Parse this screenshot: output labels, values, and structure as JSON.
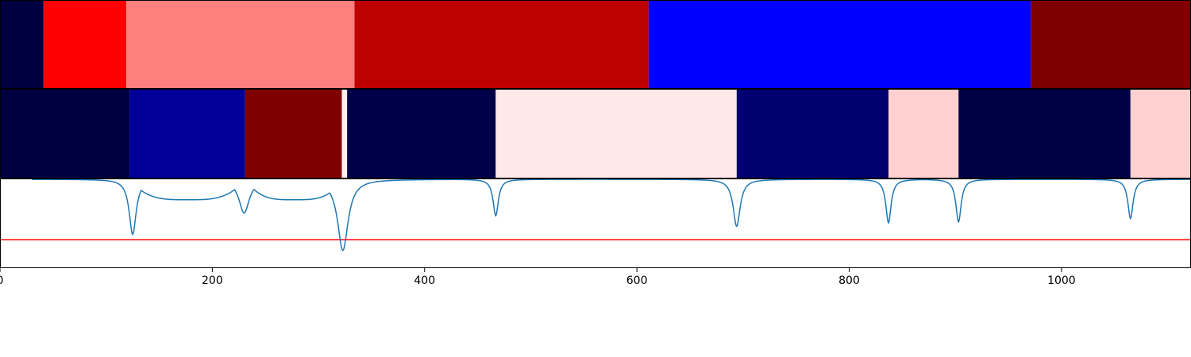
{
  "chart_data": [
    {
      "type": "heatmap",
      "segments": [
        {
          "x0": 0,
          "x1": 41,
          "color": "#000040"
        },
        {
          "x0": 41,
          "x1": 119,
          "color": "#ff0000"
        },
        {
          "x0": 119,
          "x1": 334,
          "color": "#ff7f7f"
        },
        {
          "x0": 334,
          "x1": 611,
          "color": "#bf0000"
        },
        {
          "x0": 611,
          "x1": 971,
          "color": "#0000ff"
        },
        {
          "x0": 971,
          "x1": 1122,
          "color": "#7f0000"
        }
      ]
    },
    {
      "type": "heatmap",
      "segments": [
        {
          "x0": 0,
          "x1": 122,
          "color": "#000040"
        },
        {
          "x0": 122,
          "x1": 231,
          "color": "#000099"
        },
        {
          "x0": 231,
          "x1": 322,
          "color": "#7f0000"
        },
        {
          "x0": 322,
          "x1": 327,
          "color": "#ffeeee"
        },
        {
          "x0": 327,
          "x1": 467,
          "color": "#000048"
        },
        {
          "x0": 467,
          "x1": 694,
          "color": "#ffe8e8"
        },
        {
          "x0": 694,
          "x1": 837,
          "color": "#000070"
        },
        {
          "x0": 837,
          "x1": 903,
          "color": "#ffd0d0"
        },
        {
          "x0": 903,
          "x1": 1065,
          "color": "#000044"
        },
        {
          "x0": 1065,
          "x1": 1122,
          "color": "#ffd0d0"
        }
      ]
    },
    {
      "type": "line",
      "xlim": [
        0,
        1122
      ],
      "ylim": [
        0,
        1
      ],
      "line_color": "#1f77b4",
      "threshold": 0.32,
      "threshold_color": "#ff0000",
      "xticks": [
        0,
        200,
        400,
        600,
        800,
        1000
      ],
      "xtick_labels": [
        "0",
        "200",
        "400",
        "600",
        "800",
        "1000"
      ],
      "baseline": 1.0,
      "x_start": 30,
      "x_end": 1122,
      "dips": [
        {
          "center": 125,
          "depth": 0.62,
          "width": 4
        },
        {
          "center": 230,
          "depth": 0.38,
          "width": 6
        },
        {
          "center": 323,
          "depth": 0.8,
          "width": 6
        },
        {
          "center": 467,
          "depth": 0.41,
          "width": 3
        },
        {
          "center": 694,
          "depth": 0.53,
          "width": 4
        },
        {
          "center": 837,
          "depth": 0.49,
          "width": 3
        },
        {
          "center": 903,
          "depth": 0.48,
          "width": 3
        },
        {
          "center": 1065,
          "depth": 0.44,
          "width": 3
        }
      ],
      "humps": [
        {
          "x0": 122,
          "x1": 231,
          "level": 0.77
        },
        {
          "x0": 231,
          "x1": 323,
          "level": 0.77
        }
      ]
    }
  ]
}
